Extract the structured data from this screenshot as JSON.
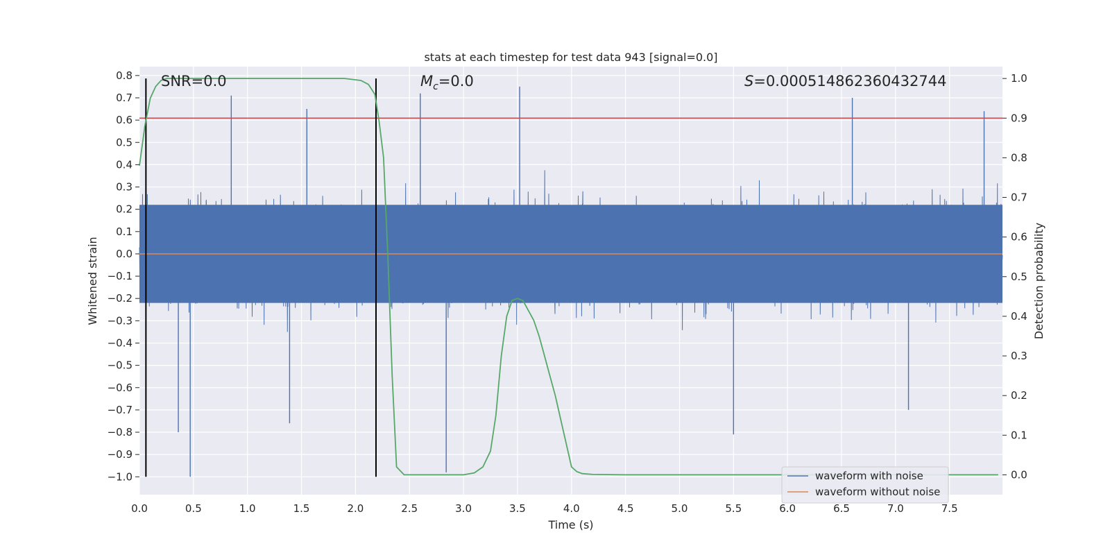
{
  "chart_data": {
    "type": "line",
    "title": "stats at each timestep for test data 943 [signal=0.0]",
    "xlabel": "Time (s)",
    "ylabel": "Whitened strain",
    "y2label": "Detection probability",
    "xlim": [
      0.0,
      7.99
    ],
    "ylim": [
      -1.08,
      0.84
    ],
    "y2lim": [
      -0.05,
      1.03
    ],
    "x_ticks": [
      0.0,
      0.5,
      1.0,
      1.5,
      2.0,
      2.5,
      3.0,
      3.5,
      4.0,
      4.5,
      5.0,
      5.5,
      6.0,
      6.5,
      7.0,
      7.5
    ],
    "x_tick_labels": [
      "0.0",
      "0.5",
      "1.0",
      "1.5",
      "2.0",
      "2.5",
      "3.0",
      "3.5",
      "4.0",
      "4.5",
      "5.0",
      "5.5",
      "6.0",
      "6.5",
      "7.0",
      "7.5"
    ],
    "y_ticks": [
      0.8,
      0.7,
      0.6,
      0.5,
      0.4,
      0.3,
      0.2,
      0.1,
      0.0,
      -0.1,
      -0.2,
      -0.3,
      -0.4,
      -0.5,
      -0.6,
      -0.7,
      -0.8,
      -0.9,
      -1.0
    ],
    "y_tick_labels": [
      "0.8",
      "0.7",
      "0.6",
      "0.5",
      "0.4",
      "0.3",
      "0.2",
      "0.1",
      "0.0",
      "−0.1",
      "−0.2",
      "−0.3",
      "−0.4",
      "−0.5",
      "−0.6",
      "−0.7",
      "−0.8",
      "−0.9",
      "−1.0"
    ],
    "y2_ticks": [
      1.0,
      0.9,
      0.8,
      0.7,
      0.6,
      0.5,
      0.4,
      0.3,
      0.2,
      0.1,
      0.0
    ],
    "y2_tick_labels": [
      "1.0",
      "0.9",
      "0.8",
      "0.7",
      "0.6",
      "0.5",
      "0.4",
      "0.3",
      "0.2",
      "0.1",
      "0.0"
    ],
    "grid": true,
    "legend_position": "lower-right",
    "annotations": {
      "snr": "SNR=0.0",
      "mc_symbol": "M",
      "mc_sub": "c",
      "mc_value": "=0.0",
      "s_symbol": "S",
      "s_value": "=0.000514862360432744"
    },
    "series": [
      {
        "name": "waveform with noise",
        "color": "#4c72b0",
        "axis": "left",
        "style": "dense noise trace",
        "envelope_typical": [
          -0.3,
          0.3
        ],
        "peaks": [
          {
            "x": 0.47,
            "y": -1.0
          },
          {
            "x": 0.36,
            "y": -0.8
          },
          {
            "x": 1.39,
            "y": -0.76
          },
          {
            "x": 0.85,
            "y": 0.71
          },
          {
            "x": 1.55,
            "y": 0.65
          },
          {
            "x": 2.6,
            "y": 0.72
          },
          {
            "x": 2.84,
            "y": -0.98
          },
          {
            "x": 3.52,
            "y": 0.75
          },
          {
            "x": 5.5,
            "y": -0.81
          },
          {
            "x": 6.6,
            "y": 0.7
          },
          {
            "x": 7.12,
            "y": -0.7
          },
          {
            "x": 7.82,
            "y": 0.64
          }
        ]
      },
      {
        "name": "waveform without noise",
        "color": "#dd8452",
        "axis": "left",
        "x": [
          0.0,
          7.99
        ],
        "y": [
          0.0,
          0.0
        ]
      },
      {
        "name": "",
        "color": "#55a868",
        "axis": "right",
        "x": [
          0.0,
          0.05,
          0.1,
          0.15,
          0.2,
          0.25,
          0.3,
          0.4,
          0.6,
          1.0,
          1.5,
          1.9,
          2.05,
          2.12,
          2.18,
          2.22,
          2.26,
          2.3,
          2.34,
          2.38,
          2.45,
          2.6,
          3.0,
          3.1,
          3.18,
          3.25,
          3.3,
          3.35,
          3.4,
          3.45,
          3.5,
          3.55,
          3.6,
          3.65,
          3.7,
          3.75,
          3.8,
          3.85,
          3.9,
          3.95,
          4.0,
          4.05,
          4.1,
          4.2,
          4.5,
          6.0,
          7.95
        ],
        "y": [
          0.78,
          0.88,
          0.95,
          0.98,
          0.995,
          1.0,
          1.0,
          1.0,
          1.0,
          1.0,
          1.0,
          1.0,
          0.995,
          0.985,
          0.96,
          0.89,
          0.8,
          0.55,
          0.25,
          0.02,
          0.0,
          0.0,
          0.0,
          0.005,
          0.02,
          0.06,
          0.15,
          0.3,
          0.4,
          0.44,
          0.445,
          0.44,
          0.415,
          0.39,
          0.35,
          0.3,
          0.25,
          0.2,
          0.14,
          0.08,
          0.02,
          0.008,
          0.003,
          0.001,
          0.0,
          0.0,
          0.0
        ]
      }
    ],
    "threshold": {
      "value": 0.9,
      "axis": "right",
      "color": "#c44e52"
    },
    "vertical_lines": [
      {
        "x": 0.06
      },
      {
        "x": 2.19
      }
    ],
    "vertical_line_color": "#000000"
  }
}
